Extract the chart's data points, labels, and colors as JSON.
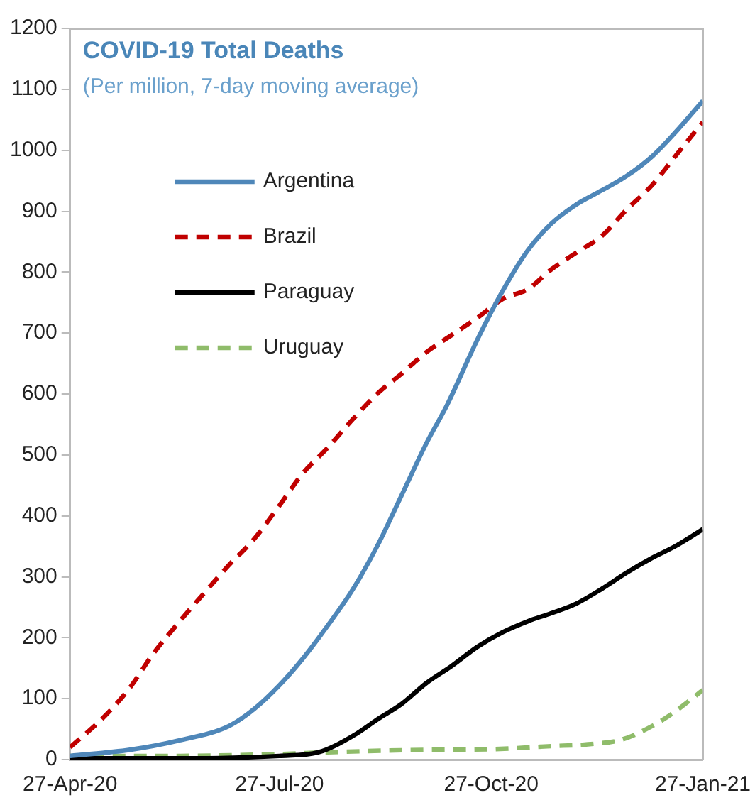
{
  "chart_data": {
    "type": "line",
    "title": "COVID-19 Total Deaths",
    "subtitle": "(Per million, 7-day moving average)",
    "xlim": [
      "2020-04-27",
      "2021-01-27"
    ],
    "xticks": [
      {
        "value": "2020-04-27",
        "label": "27-Apr-20"
      },
      {
        "value": "2020-07-27",
        "label": "27-Jul-20"
      },
      {
        "value": "2020-10-27",
        "label": "27-Oct-20"
      },
      {
        "value": "2021-01-27",
        "label": "27-Jan-21"
      }
    ],
    "ylim": [
      0,
      1200
    ],
    "yticks": [
      0,
      100,
      200,
      300,
      400,
      500,
      600,
      700,
      800,
      900,
      1000,
      1100,
      1200
    ],
    "grid": false,
    "legend": "top left",
    "marker": "none",
    "series": [
      {
        "name": "Argentina",
        "color": "#4f87b9",
        "line_style": "solid",
        "x": [
          "2020-04-27",
          "2020-05-23",
          "2020-06-13",
          "2020-07-05",
          "2020-07-16",
          "2020-07-27",
          "2020-08-06",
          "2020-08-17",
          "2020-08-28",
          "2020-09-08",
          "2020-09-18",
          "2020-09-29",
          "2020-10-08",
          "2020-10-21",
          "2020-11-01",
          "2020-11-12",
          "2020-11-22",
          "2020-12-03",
          "2020-12-14",
          "2020-12-25",
          "2021-01-05",
          "2021-01-15",
          "2021-01-27"
        ],
        "values": [
          6,
          16,
          31,
          55,
          83,
          122,
          165,
          220,
          280,
          354,
          433,
          520,
          583,
          689,
          769,
          836,
          879,
          911,
          934,
          958,
          990,
          1029,
          1081
        ]
      },
      {
        "name": "Brazil",
        "color": "#c00000",
        "line_style": "dashed",
        "x": [
          "2020-04-27",
          "2020-05-12",
          "2020-05-23",
          "2020-06-02",
          "2020-06-13",
          "2020-06-24",
          "2020-07-05",
          "2020-07-16",
          "2020-07-27",
          "2020-08-06",
          "2020-08-17",
          "2020-08-28",
          "2020-09-08",
          "2020-09-18",
          "2020-09-29",
          "2020-10-10",
          "2020-10-21",
          "2020-11-01",
          "2020-11-12",
          "2020-11-22",
          "2020-12-03",
          "2020-12-14",
          "2020-12-25",
          "2021-01-05",
          "2021-01-15",
          "2021-01-27"
        ],
        "values": [
          20,
          71,
          118,
          173,
          224,
          272,
          319,
          362,
          417,
          469,
          512,
          559,
          602,
          633,
          669,
          697,
          725,
          756,
          772,
          804,
          832,
          859,
          903,
          943,
          990,
          1046
        ]
      },
      {
        "name": "Paraguay",
        "color": "#000000",
        "line_style": "solid",
        "x": [
          "2020-04-27",
          "2020-06-13",
          "2020-07-27",
          "2020-08-13",
          "2020-08-28",
          "2020-09-08",
          "2020-09-18",
          "2020-09-29",
          "2020-10-10",
          "2020-10-21",
          "2020-11-01",
          "2020-11-12",
          "2020-11-22",
          "2020-12-03",
          "2020-12-14",
          "2020-12-25",
          "2021-01-05",
          "2021-01-15",
          "2021-01-27"
        ],
        "values": [
          2,
          2,
          6,
          12,
          39,
          67,
          91,
          126,
          154,
          185,
          209,
          227,
          240,
          256,
          280,
          307,
          331,
          350,
          378
        ]
      },
      {
        "name": "Uruguay",
        "color": "#8fbc6a",
        "line_style": "dashed",
        "x": [
          "2020-04-27",
          "2020-06-13",
          "2020-07-27",
          "2020-08-17",
          "2020-09-29",
          "2020-10-27",
          "2020-11-22",
          "2020-12-08",
          "2020-12-23",
          "2021-01-05",
          "2021-01-15",
          "2021-01-27"
        ],
        "values": [
          6,
          6,
          9,
          12,
          16,
          17,
          22,
          25,
          33,
          55,
          79,
          114
        ]
      }
    ]
  }
}
